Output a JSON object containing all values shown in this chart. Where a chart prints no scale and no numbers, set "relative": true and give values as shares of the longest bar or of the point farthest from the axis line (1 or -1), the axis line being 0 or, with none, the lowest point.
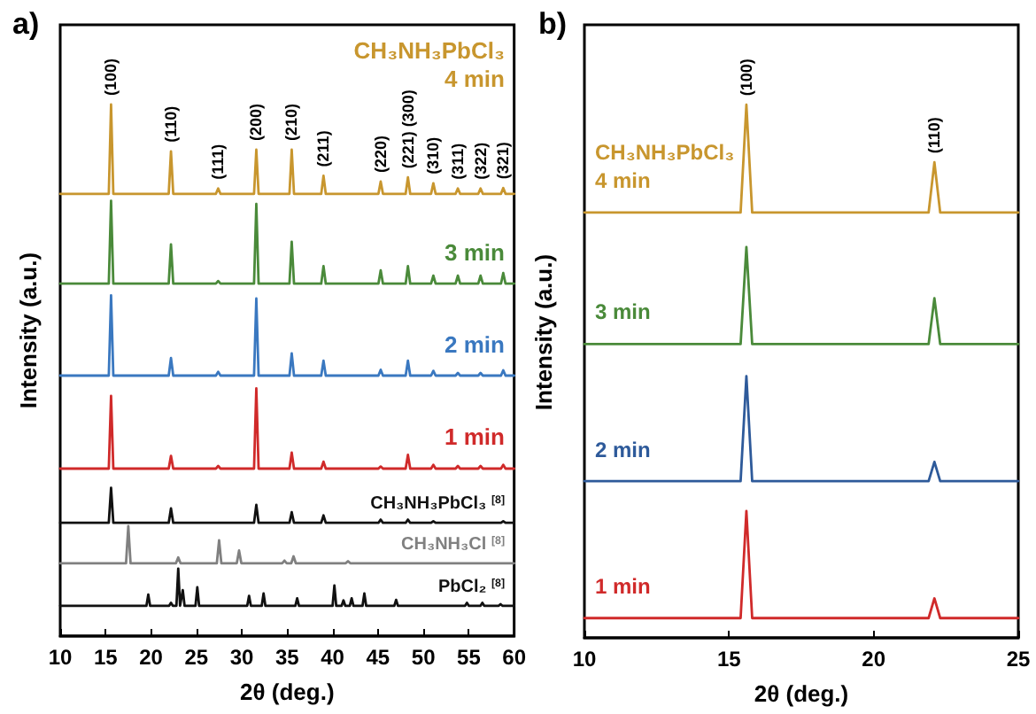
{
  "chart_data": [
    {
      "type": "line",
      "title": "a)",
      "xlabel": "2θ (deg.)",
      "ylabel": "Intensity (a.u.)",
      "relative": true,
      "xlim": [
        10,
        60
      ],
      "xticks": [
        10,
        15,
        20,
        25,
        30,
        35,
        40,
        45,
        50,
        55,
        60
      ],
      "grid": false,
      "legend": false,
      "marker": "none",
      "line_style": "solid",
      "x": [
        10,
        15.35,
        15.6,
        15.85,
        21.95,
        22.2,
        22.45,
        27.15,
        27.4,
        27.65,
        31.35,
        31.6,
        31.85,
        35.25,
        35.5,
        35.75,
        38.75,
        39.0,
        39.25,
        45.05,
        45.3,
        45.55,
        48.05,
        48.3,
        48.55,
        50.85,
        51.1,
        51.35,
        53.55,
        53.8,
        54.05,
        56.05,
        56.3,
        56.55,
        58.55,
        58.8,
        59.05,
        60
      ],
      "series": [
        {
          "name": "4 min",
          "color": "#c8962e",
          "values": [
            0.832,
            0.832,
            1.0,
            0.832,
            0.832,
            0.912,
            0.832,
            0.832,
            0.842,
            0.832,
            0.832,
            0.915,
            0.832,
            0.832,
            0.915,
            0.832,
            0.832,
            0.866,
            0.832,
            0.832,
            0.855,
            0.832,
            0.832,
            0.863,
            0.832,
            0.832,
            0.852,
            0.832,
            0.832,
            0.842,
            0.832,
            0.832,
            0.842,
            0.832,
            0.832,
            0.843,
            0.832,
            0.832
          ]
        },
        {
          "name": "3 min",
          "color": "#4a8a3a",
          "values": [
            0.663,
            0.663,
            0.819,
            0.663,
            0.663,
            0.737,
            0.663,
            0.663,
            0.668,
            0.663,
            0.663,
            0.813,
            0.663,
            0.663,
            0.742,
            0.663,
            0.663,
            0.696,
            0.663,
            0.663,
            0.688,
            0.663,
            0.663,
            0.696,
            0.663,
            0.663,
            0.678,
            0.663,
            0.663,
            0.678,
            0.663,
            0.663,
            0.678,
            0.663,
            0.663,
            0.683,
            0.663,
            0.663
          ]
        },
        {
          "name": "2 min",
          "color": "#3a78c0",
          "values": [
            0.49,
            0.49,
            0.641,
            0.49,
            0.49,
            0.523,
            0.49,
            0.49,
            0.497,
            0.49,
            0.49,
            0.635,
            0.49,
            0.49,
            0.532,
            0.49,
            0.49,
            0.518,
            0.49,
            0.49,
            0.501,
            0.49,
            0.49,
            0.518,
            0.49,
            0.49,
            0.499,
            0.49,
            0.49,
            0.495,
            0.49,
            0.49,
            0.495,
            0.49,
            0.49,
            0.5,
            0.49,
            0.49
          ]
        },
        {
          "name": "1 min",
          "color": "#d02a2a",
          "values": [
            0.315,
            0.315,
            0.452,
            0.315,
            0.315,
            0.339,
            0.315,
            0.315,
            0.32,
            0.315,
            0.315,
            0.466,
            0.315,
            0.315,
            0.345,
            0.315,
            0.315,
            0.328,
            0.315,
            0.315,
            0.319,
            0.315,
            0.315,
            0.341,
            0.315,
            0.315,
            0.322,
            0.315,
            0.315,
            0.32,
            0.315,
            0.315,
            0.32,
            0.315,
            0.315,
            0.322,
            0.315,
            0.315
          ]
        },
        {
          "name": "CH₃NH₃PbCl₃ $^{[8]}$",
          "color": "#111111",
          "x": [
            10,
            15.35,
            15.6,
            15.85,
            21.95,
            22.2,
            22.45,
            31.35,
            31.6,
            31.85,
            35.25,
            35.5,
            35.75,
            38.75,
            39.0,
            39.25,
            45.05,
            45.3,
            45.55,
            48.05,
            48.3,
            48.55,
            50.85,
            51.1,
            51.35,
            58.55,
            58.8,
            59.05,
            60
          ],
          "values": [
            0.213,
            0.213,
            0.279,
            0.213,
            0.213,
            0.24,
            0.213,
            0.213,
            0.247,
            0.213,
            0.213,
            0.233,
            0.213,
            0.213,
            0.227,
            0.213,
            0.213,
            0.219,
            0.213,
            0.213,
            0.219,
            0.213,
            0.213,
            0.216,
            0.213,
            0.213,
            0.216,
            0.213,
            0.213
          ]
        },
        {
          "name": "CH₃NH₃Cl $^{[8]}$",
          "color": "#808080",
          "x": [
            10,
            17.25,
            17.5,
            17.75,
            22.75,
            23.0,
            23.25,
            27.25,
            27.5,
            27.75,
            29.45,
            29.7,
            29.95,
            34.45,
            34.7,
            34.95,
            35.45,
            35.7,
            35.95,
            41.45,
            41.7,
            41.95,
            60
          ],
          "values": [
            0.137,
            0.137,
            0.207,
            0.137,
            0.137,
            0.148,
            0.137,
            0.137,
            0.18,
            0.137,
            0.137,
            0.161,
            0.137,
            0.137,
            0.142,
            0.137,
            0.137,
            0.15,
            0.137,
            0.137,
            0.141,
            0.137,
            0.137
          ]
        },
        {
          "name": "PbCl₂ $^{[8]}$",
          "color": "#111111",
          "x": [
            10,
            19.5,
            19.7,
            19.9,
            22.0,
            22.2,
            22.4,
            22.8,
            23.0,
            23.2,
            23.3,
            23.5,
            23.7,
            24.9,
            25.1,
            25.3,
            30.6,
            30.8,
            31.0,
            32.2,
            32.4,
            32.6,
            35.9,
            36.1,
            36.3,
            40.0,
            40.2,
            40.4,
            41.0,
            41.2,
            41.4,
            41.9,
            42.1,
            42.3,
            43.3,
            43.5,
            43.7,
            46.8,
            47.0,
            47.2,
            54.6,
            54.8,
            55.0,
            56.3,
            56.5,
            56.7,
            58.3,
            58.5,
            58.7,
            60
          ],
          "values": [
            0.057,
            0.057,
            0.078,
            0.057,
            0.057,
            0.0625,
            0.057,
            0.057,
            0.127,
            0.057,
            0.057,
            0.0865,
            0.057,
            0.057,
            0.092,
            0.057,
            0.057,
            0.0757,
            0.057,
            0.057,
            0.08,
            0.057,
            0.057,
            0.071,
            0.057,
            0.057,
            0.095,
            0.057,
            0.057,
            0.067,
            0.057,
            0.057,
            0.071,
            0.057,
            0.057,
            0.08,
            0.057,
            0.057,
            0.068,
            0.057,
            0.057,
            0.0625,
            0.057,
            0.057,
            0.0625,
            0.057,
            0.057,
            0.06,
            0.057,
            0.057
          ]
        }
      ],
      "annotations": [
        "CH₃NH₃PbCl₃",
        {
          "text": "(100)",
          "x": 15.6,
          "y": 1.0
        },
        {
          "text": "(110)",
          "x": 22.2,
          "y": 0.912
        },
        {
          "text": "(111)",
          "x": 27.4,
          "y": 0.842
        },
        {
          "text": "(200)",
          "x": 31.6,
          "y": 0.915
        },
        {
          "text": "(210)",
          "x": 35.5,
          "y": 0.915
        },
        {
          "text": "(211)",
          "x": 39.0,
          "y": 0.866
        },
        {
          "text": "(220)",
          "x": 45.3,
          "y": 0.855
        },
        {
          "text": "(221) (300)",
          "x": 48.3,
          "y": 0.863
        },
        {
          "text": "(310)",
          "x": 51.1,
          "y": 0.852
        },
        {
          "text": "(311)",
          "x": 53.8,
          "y": 0.842
        },
        {
          "text": "(322)",
          "x": 56.3,
          "y": 0.842
        },
        {
          "text": "(321)",
          "x": 58.8,
          "y": 0.843
        }
      ]
    },
    {
      "type": "line",
      "title": "b)",
      "xlabel": "2θ (deg.)",
      "ylabel": "Intensity (a.u.)",
      "relative": true,
      "xlim": [
        10,
        25
      ],
      "xticks": [
        10,
        15,
        20,
        25
      ],
      "grid": false,
      "legend": false,
      "marker": "none",
      "line_style": "solid",
      "x": [
        10,
        15.4,
        15.6,
        15.8,
        21.9,
        22.1,
        22.3,
        25
      ],
      "series": [
        {
          "name": "4 min",
          "color": "#c8962e",
          "values": [
            0.798,
            0.798,
            1.0,
            0.798,
            0.798,
            0.892,
            0.798,
            0.798
          ]
        },
        {
          "name": "3 min",
          "color": "#4a8a3a",
          "values": [
            0.551,
            0.551,
            0.733,
            0.551,
            0.551,
            0.637,
            0.551,
            0.551
          ]
        },
        {
          "name": "2 min",
          "color": "#2e5a9a",
          "values": [
            0.294,
            0.294,
            0.491,
            0.294,
            0.294,
            0.33,
            0.294,
            0.294
          ]
        },
        {
          "name": "1 min",
          "color": "#d02a2a",
          "values": [
            0.037,
            0.037,
            0.238,
            0.037,
            0.037,
            0.074,
            0.037,
            0.037
          ]
        }
      ],
      "annotations": [
        "CH₃NH₃PbCl₃",
        {
          "text": "(100)",
          "x": 15.6,
          "y": 1.0
        },
        {
          "text": "(110)",
          "x": 22.1,
          "y": 0.892
        }
      ]
    }
  ]
}
